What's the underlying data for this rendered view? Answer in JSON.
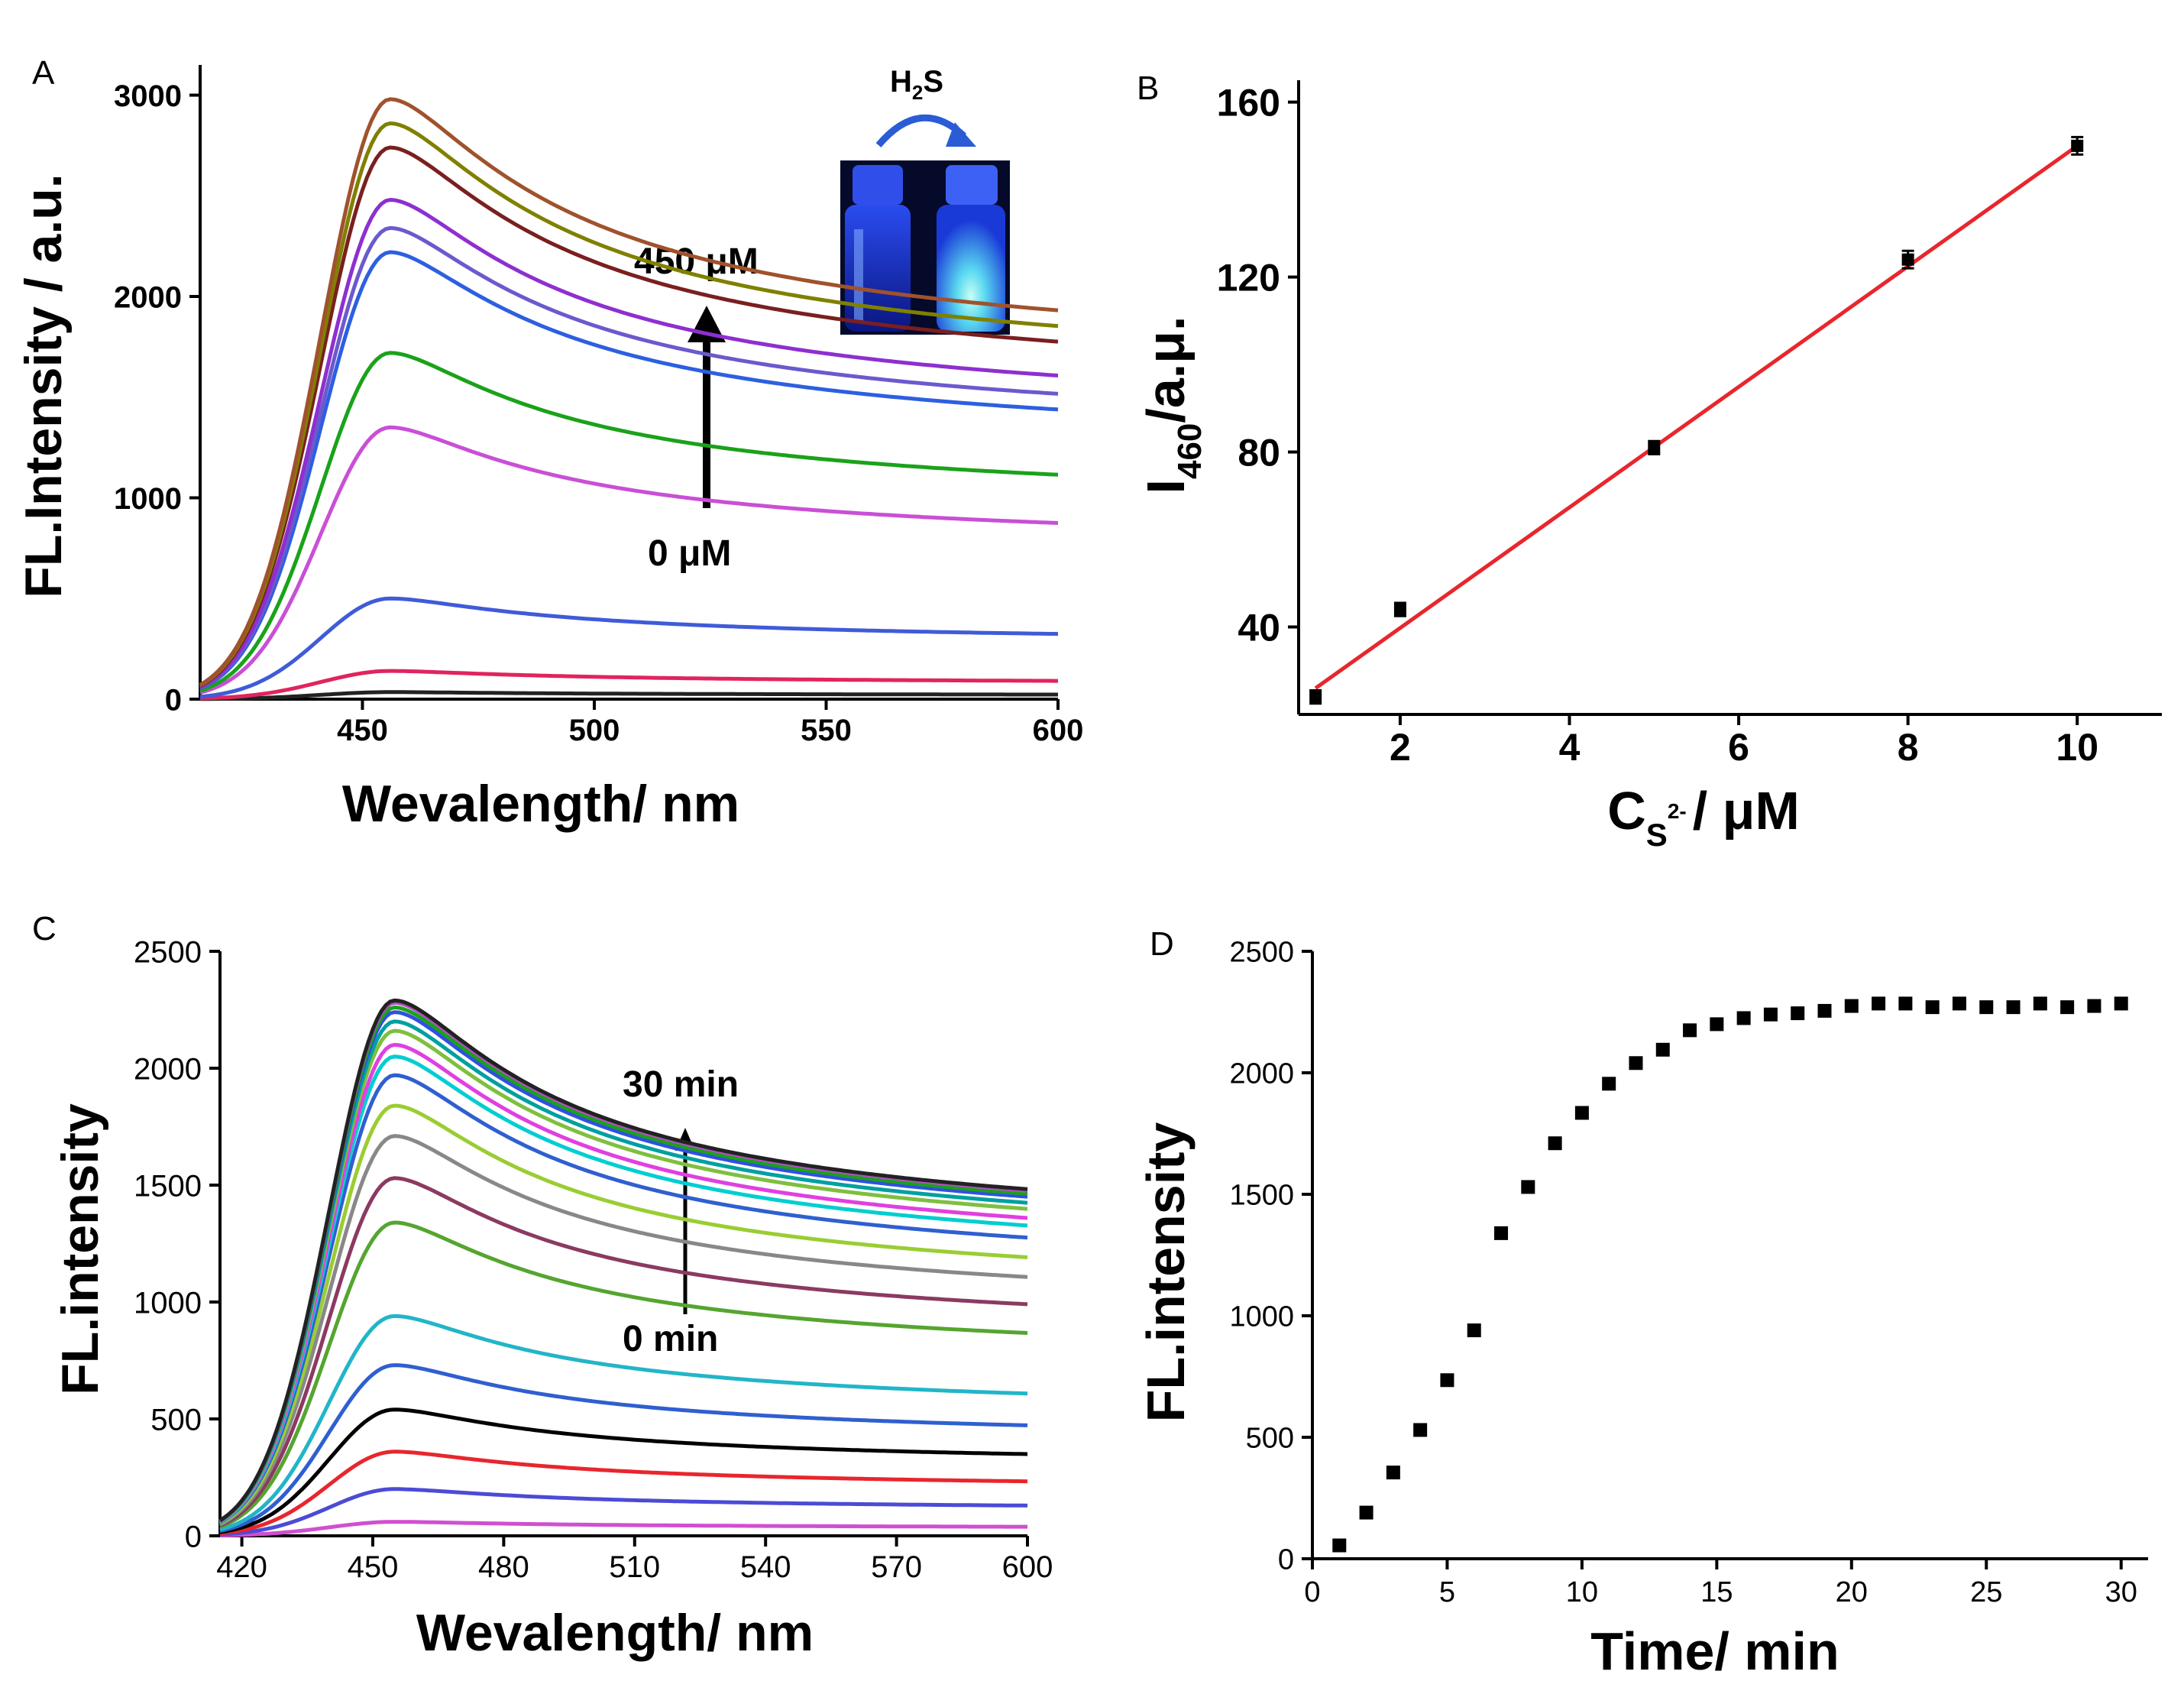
{
  "figure": {
    "panels": [
      "A",
      "B",
      "C",
      "D"
    ],
    "inset": {
      "reagent": "H",
      "reagent_sub": "2",
      "reagent_tail": "S"
    }
  },
  "chart_data": [
    {
      "panel": "A",
      "type": "line",
      "title": "",
      "xlabel": "Wevalength/ nm",
      "ylabel": "FL.Intensity / a.u.",
      "xlim": [
        415,
        600
      ],
      "ylim": [
        0,
        3150
      ],
      "xticks": [
        450,
        500,
        550,
        600
      ],
      "xticklabels": [
        "450",
        "500",
        "550",
        "600"
      ],
      "yticks": [
        0,
        1000,
        2000,
        3000
      ],
      "yticklabels": [
        "0",
        "1000",
        "2000",
        "3000"
      ],
      "peak_wavelength": 456,
      "annotations": {
        "top": "450 μM",
        "bottom": "0 μM"
      },
      "series": [
        {
          "color": "#222222",
          "peak": 35
        },
        {
          "color": "#e0245e",
          "peak": 140
        },
        {
          "color": "#3f5bd8",
          "peak": 500
        },
        {
          "color": "#c94fd6",
          "peak": 1350
        },
        {
          "color": "#1aa21a",
          "peak": 1720
        },
        {
          "color": "#2d5fe0",
          "peak": 2220
        },
        {
          "color": "#6a5acd",
          "peak": 2340
        },
        {
          "color": "#8e2fd0",
          "peak": 2480
        },
        {
          "color": "#7a1f1f",
          "peak": 2740
        },
        {
          "color": "#808000",
          "peak": 2860
        },
        {
          "color": "#a0522d",
          "peak": 2980
        }
      ]
    },
    {
      "panel": "B",
      "type": "scatter",
      "title": "",
      "xlabel_main": "C",
      "xlabel_sub": "S",
      "xlabel_sup": "2-",
      "xlabel_tail": "/ μM",
      "ylabel_main": "I",
      "ylabel_sub": "460",
      "ylabel_tail": "/a.μ.",
      "xlim": [
        0.8,
        11
      ],
      "ylim": [
        20,
        165
      ],
      "xticks": [
        2,
        4,
        6,
        8,
        10
      ],
      "xticklabels": [
        "2",
        "4",
        "6",
        "8",
        "10"
      ],
      "yticks": [
        40,
        80,
        120,
        160
      ],
      "yticklabels": [
        "40",
        "80",
        "120",
        "160"
      ],
      "x": [
        1,
        2,
        5,
        8,
        10
      ],
      "y": [
        24,
        44,
        81,
        124,
        150
      ],
      "yerr": [
        1.5,
        1.5,
        1.5,
        2,
        2
      ],
      "fit": {
        "x": [
          1,
          10
        ],
        "y": [
          26,
          150
        ],
        "color": "#e8262d"
      }
    },
    {
      "panel": "C",
      "type": "line",
      "title": "",
      "xlabel": "Wevalength/ nm",
      "ylabel": "FL.intensity",
      "xlim": [
        415,
        600
      ],
      "ylim": [
        0,
        2500
      ],
      "xticks": [
        420,
        450,
        480,
        510,
        540,
        570,
        600
      ],
      "xticklabels": [
        "420",
        "450",
        "480",
        "510",
        "540",
        "570",
        "600"
      ],
      "yticks": [
        0,
        500,
        1000,
        1500,
        2000,
        2500
      ],
      "yticklabels": [
        "0",
        "500",
        "1000",
        "1500",
        "2000",
        "2500"
      ],
      "peak_wavelength": 455,
      "annotations": {
        "top": "30 min",
        "bottom": "0 min"
      },
      "series": [
        {
          "color": "#d04fd0",
          "peak": 60
        },
        {
          "color": "#4b4bd6",
          "peak": 200
        },
        {
          "color": "#e8262d",
          "peak": 360
        },
        {
          "color": "#000000",
          "peak": 540
        },
        {
          "color": "#2f5fd0",
          "peak": 730
        },
        {
          "color": "#22b5c8",
          "peak": 940
        },
        {
          "color": "#55a530",
          "peak": 1340
        },
        {
          "color": "#8b3a62",
          "peak": 1530
        },
        {
          "color": "#888888",
          "peak": 1710
        },
        {
          "color": "#9acd32",
          "peak": 1840
        },
        {
          "color": "#2f5fd0",
          "peak": 1970
        },
        {
          "color": "#00ced1",
          "peak": 2050
        },
        {
          "color": "#e040e0",
          "peak": 2100
        },
        {
          "color": "#7fbf3f",
          "peak": 2160
        },
        {
          "color": "#00a0a0",
          "peak": 2200
        },
        {
          "color": "#3050e0",
          "peak": 2240
        },
        {
          "color": "#1aa21a",
          "peak": 2260
        },
        {
          "color": "#b050c0",
          "peak": 2280
        },
        {
          "color": "#222222",
          "peak": 2290
        }
      ]
    },
    {
      "panel": "D",
      "type": "scatter",
      "title": "",
      "xlabel": "Time/ min",
      "ylabel": "FL.intensity",
      "xlim": [
        0,
        31
      ],
      "ylim": [
        0,
        2500
      ],
      "xticks": [
        0,
        5,
        10,
        15,
        20,
        25,
        30
      ],
      "xticklabels": [
        "0",
        "5",
        "10",
        "15",
        "20",
        "25",
        "30"
      ],
      "yticks": [
        0,
        500,
        1000,
        1500,
        2000,
        2500
      ],
      "yticklabels": [
        "0",
        "500",
        "1000",
        "1500",
        "2000",
        "2500"
      ],
      "x": [
        1,
        2,
        3,
        4,
        5,
        6,
        7,
        8,
        9,
        10,
        11,
        12,
        13,
        14,
        15,
        16,
        17,
        18,
        19,
        20,
        21,
        22,
        23,
        24,
        25,
        26,
        27,
        28,
        29,
        30
      ],
      "y": [
        55,
        190,
        355,
        530,
        735,
        940,
        1340,
        1530,
        1710,
        1835,
        1955,
        2040,
        2095,
        2175,
        2200,
        2225,
        2240,
        2245,
        2255,
        2275,
        2285,
        2285,
        2270,
        2285,
        2270,
        2270,
        2285,
        2270,
        2275,
        2285
      ]
    }
  ]
}
